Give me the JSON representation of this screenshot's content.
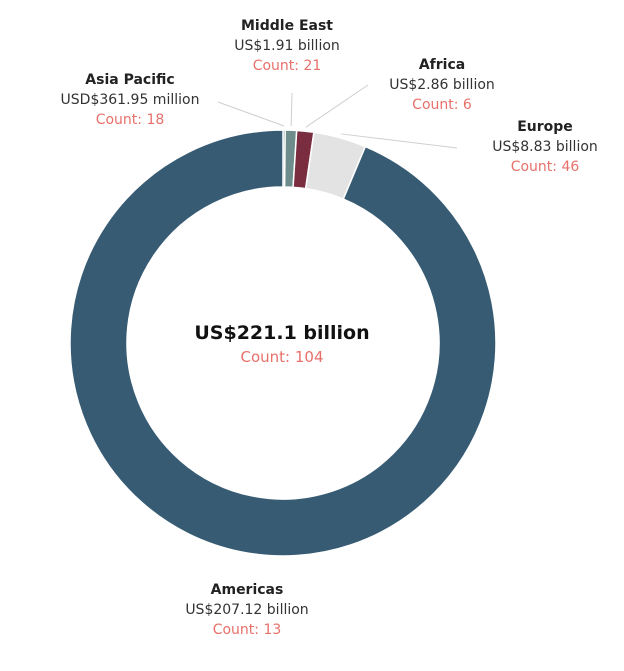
{
  "center": {
    "total": "US$221.1 billion",
    "count": "Count: 104"
  },
  "chart_data": {
    "type": "pie",
    "variant": "donut",
    "unit": "US$ billion",
    "slices": [
      {
        "label": "Asia Pacific",
        "value": 0.36195,
        "value_text": "USD$361.95 million",
        "count_text": "Count: 18",
        "color": "#5e7f7e"
      },
      {
        "label": "Middle East",
        "value": 1.91,
        "value_text": "US$1.91 billion",
        "count_text": "Count: 21",
        "color": "#6f8c8c"
      },
      {
        "label": "Africa",
        "value": 2.86,
        "value_text": "US$2.86 billion",
        "count_text": "Count: 6",
        "color": "#7a2d3f"
      },
      {
        "label": "Europe",
        "value": 8.83,
        "value_text": "US$8.83 billion",
        "count_text": "Count: 46",
        "color": "#e3e3e3"
      },
      {
        "label": "Americas",
        "value": 207.12,
        "value_text": "US$207.12 billion",
        "count_text": "Count: 13",
        "color": "#365b73"
      }
    ]
  }
}
